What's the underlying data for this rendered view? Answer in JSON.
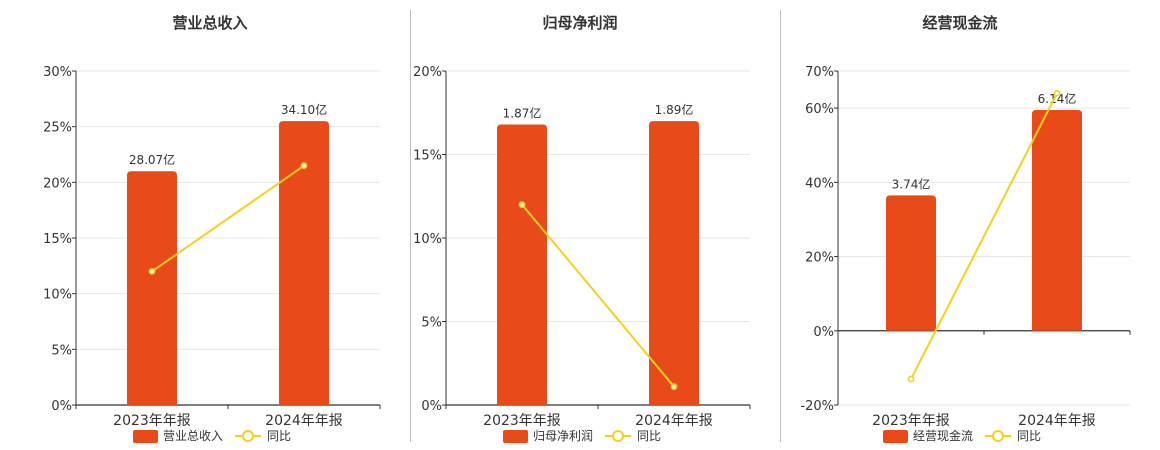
{
  "colors": {
    "bar": "#E84A1A",
    "line": "#F2D21B",
    "axis": "#333333",
    "grid": "#e6e6e6",
    "text": "#333333"
  },
  "chart_data": [
    {
      "type": "bar",
      "title": "营业总收入",
      "categories": [
        "2023年年报",
        "2024年年报"
      ],
      "bar_series": {
        "name": "营业总收入",
        "values": [
          28.07,
          34.1
        ],
        "labels": [
          "28.07亿",
          "34.10亿"
        ]
      },
      "line_series": {
        "name": "同比",
        "values": [
          12.0,
          21.5
        ]
      },
      "ylim": [
        0,
        30
      ],
      "yticks": [
        0,
        5,
        10,
        15,
        20,
        25,
        30
      ],
      "ytick_labels": [
        "0%",
        "5%",
        "10%",
        "15%",
        "20%",
        "25%",
        "30%"
      ],
      "bar_heights_on_axis": [
        21.0,
        25.5
      ],
      "grid": true,
      "legend": "bottom"
    },
    {
      "type": "bar",
      "title": "归母净利润",
      "categories": [
        "2023年年报",
        "2024年年报"
      ],
      "bar_series": {
        "name": "归母净利润",
        "values": [
          1.87,
          1.89
        ],
        "labels": [
          "1.87亿",
          "1.89亿"
        ]
      },
      "line_series": {
        "name": "同比",
        "values": [
          12.0,
          1.1
        ]
      },
      "ylim": [
        0,
        20
      ],
      "yticks": [
        0,
        5,
        10,
        15,
        20
      ],
      "ytick_labels": [
        "0%",
        "5%",
        "10%",
        "15%",
        "20%"
      ],
      "bar_heights_on_axis": [
        16.8,
        17.0
      ],
      "grid": true,
      "legend": "bottom"
    },
    {
      "type": "bar",
      "title": "经营现金流",
      "categories": [
        "2023年年报",
        "2024年年报"
      ],
      "bar_series": {
        "name": "经营现金流",
        "values": [
          3.74,
          6.14
        ],
        "labels": [
          "3.74亿",
          "6.14亿"
        ]
      },
      "line_series": {
        "name": "同比",
        "values": [
          -13.0,
          64.0
        ]
      },
      "ylim": [
        -20,
        70
      ],
      "yticks": [
        -20,
        0,
        20,
        40,
        60,
        70
      ],
      "ytick_labels": [
        "-20%",
        "0%",
        "20%",
        "40%",
        "60%",
        "70%"
      ],
      "bar_heights_on_axis": [
        36.5,
        59.5
      ],
      "grid": true,
      "legend": "bottom"
    }
  ]
}
